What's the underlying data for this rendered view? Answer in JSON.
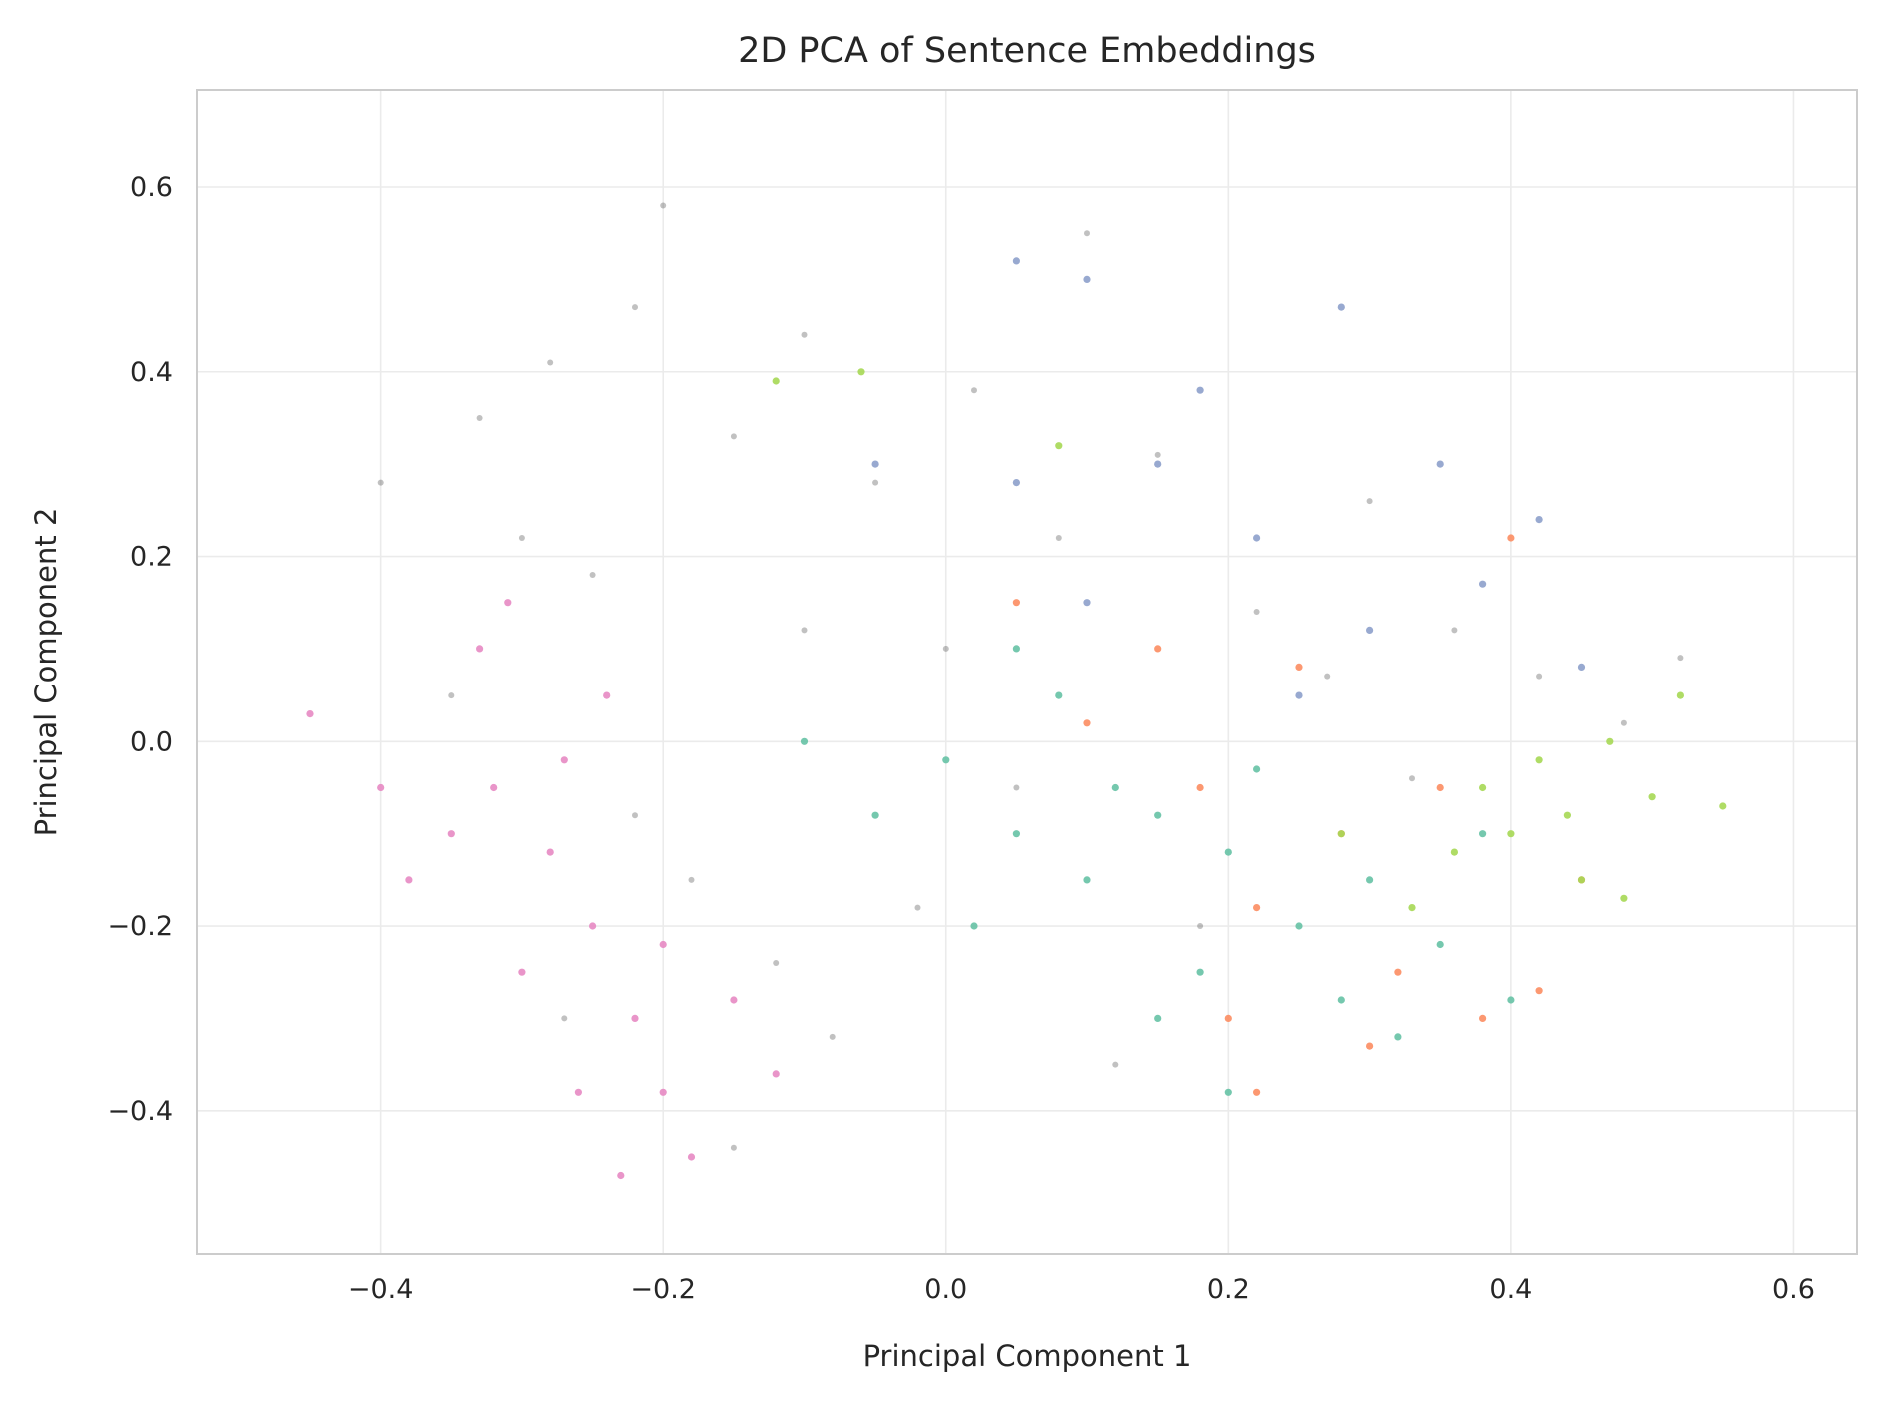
{
  "chart_data": {
    "type": "scatter",
    "title": "2D PCA of Sentence Embeddings",
    "xlabel": "Principal Component 1",
    "ylabel": "Principal Component 2",
    "xlim": [
      -0.53,
      0.645
    ],
    "ylim": [
      -0.555,
      0.705
    ],
    "xticks": [
      -0.4,
      -0.2,
      0.0,
      0.2,
      0.4,
      0.6
    ],
    "xtick_labels": [
      "−0.4",
      "−0.2",
      "0.0",
      "0.2",
      "0.4",
      "0.6"
    ],
    "yticks": [
      -0.4,
      -0.2,
      0.0,
      0.2,
      0.4,
      0.6
    ],
    "ytick_labels": [
      "−0.4",
      "−0.2",
      "0.0",
      "0.2",
      "0.4",
      "0.6"
    ],
    "grid": true,
    "legend": "none",
    "series": [
      {
        "color": "#4d4d4d",
        "points": [
          [
            -0.33,
            0.35
          ],
          [
            -0.28,
            0.41
          ],
          [
            -0.22,
            0.47
          ],
          [
            -0.15,
            0.33
          ],
          [
            -0.3,
            0.22
          ],
          [
            -0.25,
            0.18
          ],
          [
            -0.1,
            0.44
          ],
          [
            -0.05,
            0.28
          ],
          [
            0.02,
            0.38
          ],
          [
            0.08,
            0.22
          ],
          [
            0.15,
            0.31
          ],
          [
            0.22,
            0.14
          ],
          [
            0.3,
            0.26
          ],
          [
            0.36,
            0.12
          ],
          [
            0.42,
            0.07
          ],
          [
            0.48,
            0.02
          ],
          [
            -0.22,
            -0.08
          ],
          [
            -0.18,
            -0.15
          ],
          [
            -0.12,
            -0.24
          ],
          [
            -0.08,
            -0.32
          ],
          [
            -0.02,
            -0.18
          ],
          [
            0.05,
            -0.05
          ],
          [
            -0.35,
            0.05
          ],
          [
            -0.4,
            0.28
          ],
          [
            0.1,
            0.55
          ],
          [
            -0.2,
            0.58
          ],
          [
            0.27,
            0.07
          ],
          [
            0.33,
            -0.04
          ],
          [
            0.52,
            0.09
          ],
          [
            -0.27,
            -0.3
          ],
          [
            -0.15,
            -0.44
          ],
          [
            0.12,
            -0.35
          ],
          [
            0.0,
            0.1
          ],
          [
            -0.1,
            0.12
          ],
          [
            0.18,
            -0.2
          ]
        ]
      },
      {
        "color": "#e78ac3",
        "points": [
          [
            -0.32,
            -0.05
          ],
          [
            -0.28,
            -0.12
          ],
          [
            -0.25,
            -0.2
          ],
          [
            -0.3,
            -0.25
          ],
          [
            -0.22,
            -0.3
          ],
          [
            -0.2,
            -0.38
          ],
          [
            -0.18,
            -0.45
          ],
          [
            -0.35,
            -0.1
          ],
          [
            -0.27,
            -0.02
          ],
          [
            -0.24,
            0.05
          ],
          [
            -0.33,
            0.1
          ],
          [
            -0.15,
            -0.28
          ],
          [
            -0.12,
            -0.36
          ],
          [
            -0.38,
            -0.15
          ],
          [
            -0.4,
            -0.05
          ],
          [
            -0.23,
            -0.47
          ],
          [
            -0.31,
            0.15
          ],
          [
            -0.45,
            0.03
          ],
          [
            -0.2,
            -0.22
          ],
          [
            -0.26,
            -0.38
          ]
        ]
      },
      {
        "color": "#66c2a5",
        "points": [
          [
            0.05,
            -0.1
          ],
          [
            0.1,
            -0.15
          ],
          [
            0.15,
            -0.08
          ],
          [
            0.2,
            -0.12
          ],
          [
            0.25,
            -0.2
          ],
          [
            0.3,
            -0.15
          ],
          [
            0.35,
            -0.22
          ],
          [
            0.18,
            -0.25
          ],
          [
            0.12,
            -0.05
          ],
          [
            0.0,
            -0.02
          ],
          [
            -0.05,
            -0.08
          ],
          [
            0.08,
            0.05
          ],
          [
            0.22,
            -0.03
          ],
          [
            0.28,
            -0.28
          ],
          [
            0.32,
            -0.32
          ],
          [
            0.4,
            -0.28
          ],
          [
            -0.1,
            0.0
          ],
          [
            0.02,
            -0.2
          ],
          [
            0.15,
            -0.3
          ],
          [
            0.38,
            -0.1
          ],
          [
            0.05,
            0.1
          ],
          [
            0.2,
            -0.38
          ]
        ]
      },
      {
        "color": "#fc8d62",
        "points": [
          [
            0.18,
            -0.05
          ],
          [
            0.22,
            -0.18
          ],
          [
            0.28,
            -0.1
          ],
          [
            0.32,
            -0.25
          ],
          [
            0.35,
            -0.05
          ],
          [
            0.1,
            0.02
          ],
          [
            0.15,
            0.1
          ],
          [
            0.25,
            0.08
          ],
          [
            0.38,
            -0.3
          ],
          [
            0.3,
            -0.33
          ],
          [
            0.42,
            -0.27
          ],
          [
            0.2,
            -0.3
          ],
          [
            0.05,
            0.15
          ],
          [
            0.45,
            -0.15
          ],
          [
            0.4,
            0.22
          ],
          [
            0.22,
            -0.38
          ]
        ]
      },
      {
        "color": "#8da0cb",
        "points": [
          [
            0.05,
            0.52
          ],
          [
            0.28,
            0.47
          ],
          [
            0.18,
            0.38
          ],
          [
            0.35,
            0.3
          ],
          [
            0.22,
            0.22
          ],
          [
            0.42,
            0.24
          ],
          [
            0.1,
            0.15
          ],
          [
            0.3,
            0.12
          ],
          [
            0.15,
            0.3
          ],
          [
            0.05,
            0.28
          ],
          [
            0.38,
            0.17
          ],
          [
            0.25,
            0.05
          ],
          [
            0.45,
            0.08
          ],
          [
            -0.05,
            0.3
          ],
          [
            0.1,
            0.5
          ]
        ]
      },
      {
        "color": "#a6d854",
        "points": [
          [
            0.38,
            -0.05
          ],
          [
            0.4,
            -0.1
          ],
          [
            0.42,
            -0.02
          ],
          [
            0.44,
            -0.08
          ],
          [
            0.36,
            -0.12
          ],
          [
            0.45,
            -0.15
          ],
          [
            0.47,
            0.0
          ],
          [
            0.5,
            -0.06
          ],
          [
            0.55,
            -0.07
          ],
          [
            0.33,
            -0.18
          ],
          [
            0.28,
            -0.1
          ],
          [
            -0.12,
            0.39
          ],
          [
            0.08,
            0.32
          ],
          [
            -0.06,
            0.4
          ],
          [
            0.52,
            0.05
          ],
          [
            0.48,
            -0.17
          ]
        ]
      }
    ]
  }
}
